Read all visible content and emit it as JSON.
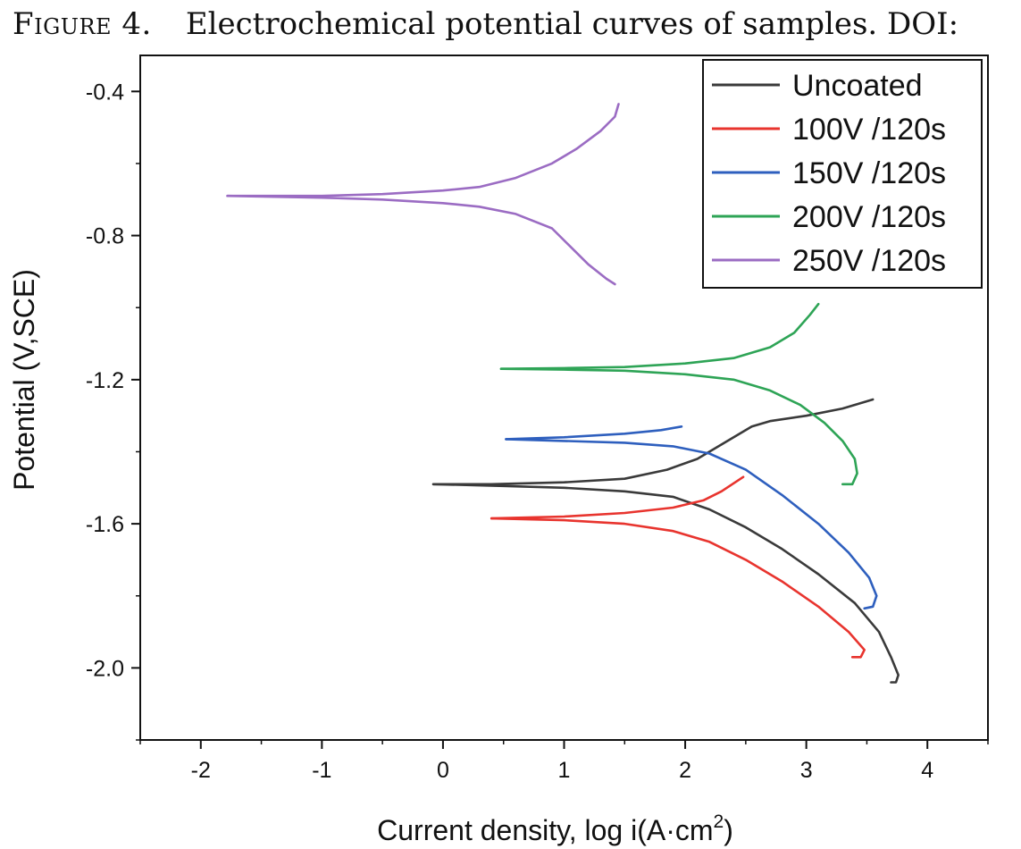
{
  "caption": {
    "label": "Figure 4.",
    "text": "Electrochemical potential curves of samples. DOI:"
  },
  "chart_data": {
    "type": "line",
    "title": "",
    "xlabel": "Current density, log i(A·cm",
    "xlabel_sup": "2",
    "xlabel_suffix": ")",
    "ylabel": "Potential (V,SCE)",
    "xlim": [
      -2.5,
      4.5
    ],
    "ylim": [
      -2.2,
      -0.3
    ],
    "x_ticks": [
      -2,
      -1,
      0,
      1,
      2,
      3,
      4
    ],
    "x_tick_labels": [
      "-2",
      "-1",
      "0",
      "1",
      "2",
      "3",
      "4"
    ],
    "y_ticks": [
      -0.4,
      -0.8,
      -1.2,
      -1.6,
      -2.0
    ],
    "y_tick_labels": [
      "-0.4",
      "-0.8",
      "-1.2",
      "-1.6",
      "-2.0"
    ],
    "grid": false,
    "legend_position": "top-right",
    "series": [
      {
        "name": "Uncoated",
        "color": "#3a3a3a",
        "anodic": [
          [
            -0.08,
            -1.49
          ],
          [
            0.4,
            -1.49
          ],
          [
            1.0,
            -1.485
          ],
          [
            1.5,
            -1.475
          ],
          [
            1.85,
            -1.45
          ],
          [
            2.1,
            -1.42
          ],
          [
            2.3,
            -1.38
          ],
          [
            2.45,
            -1.35
          ],
          [
            2.55,
            -1.33
          ],
          [
            2.7,
            -1.315
          ],
          [
            3.0,
            -1.3
          ],
          [
            3.3,
            -1.28
          ],
          [
            3.55,
            -1.255
          ]
        ],
        "cathodic": [
          [
            -0.08,
            -1.49
          ],
          [
            0.5,
            -1.495
          ],
          [
            1.0,
            -1.5
          ],
          [
            1.5,
            -1.51
          ],
          [
            1.9,
            -1.525
          ],
          [
            2.2,
            -1.56
          ],
          [
            2.5,
            -1.61
          ],
          [
            2.8,
            -1.67
          ],
          [
            3.1,
            -1.74
          ],
          [
            3.4,
            -1.82
          ],
          [
            3.6,
            -1.9
          ],
          [
            3.7,
            -1.97
          ],
          [
            3.76,
            -2.02
          ],
          [
            3.74,
            -2.04
          ],
          [
            3.7,
            -2.04
          ]
        ]
      },
      {
        "name": "100V /120s",
        "color": "#e8342e",
        "anodic": [
          [
            0.4,
            -1.585
          ],
          [
            1.0,
            -1.58
          ],
          [
            1.5,
            -1.57
          ],
          [
            1.9,
            -1.555
          ],
          [
            2.15,
            -1.535
          ],
          [
            2.3,
            -1.51
          ],
          [
            2.48,
            -1.47
          ]
        ],
        "cathodic": [
          [
            0.4,
            -1.585
          ],
          [
            1.0,
            -1.59
          ],
          [
            1.5,
            -1.6
          ],
          [
            1.9,
            -1.62
          ],
          [
            2.2,
            -1.65
          ],
          [
            2.5,
            -1.7
          ],
          [
            2.8,
            -1.76
          ],
          [
            3.1,
            -1.83
          ],
          [
            3.35,
            -1.9
          ],
          [
            3.48,
            -1.95
          ],
          [
            3.45,
            -1.97
          ],
          [
            3.38,
            -1.97
          ]
        ]
      },
      {
        "name": "150V /120s",
        "color": "#2e5fbe",
        "anodic": [
          [
            0.52,
            -1.365
          ],
          [
            1.0,
            -1.36
          ],
          [
            1.5,
            -1.35
          ],
          [
            1.8,
            -1.34
          ],
          [
            1.97,
            -1.33
          ]
        ],
        "cathodic": [
          [
            0.52,
            -1.365
          ],
          [
            1.0,
            -1.37
          ],
          [
            1.5,
            -1.375
          ],
          [
            1.9,
            -1.385
          ],
          [
            2.2,
            -1.405
          ],
          [
            2.5,
            -1.45
          ],
          [
            2.8,
            -1.52
          ],
          [
            3.1,
            -1.6
          ],
          [
            3.35,
            -1.68
          ],
          [
            3.52,
            -1.75
          ],
          [
            3.58,
            -1.8
          ],
          [
            3.55,
            -1.83
          ],
          [
            3.48,
            -1.835
          ]
        ]
      },
      {
        "name": "200V /120s",
        "color": "#2ea456",
        "anodic": [
          [
            0.48,
            -1.17
          ],
          [
            1.0,
            -1.168
          ],
          [
            1.5,
            -1.165
          ],
          [
            2.0,
            -1.155
          ],
          [
            2.4,
            -1.14
          ],
          [
            2.7,
            -1.11
          ],
          [
            2.9,
            -1.07
          ],
          [
            3.03,
            -1.02
          ],
          [
            3.1,
            -0.99
          ]
        ],
        "cathodic": [
          [
            0.48,
            -1.17
          ],
          [
            1.0,
            -1.172
          ],
          [
            1.5,
            -1.175
          ],
          [
            2.0,
            -1.185
          ],
          [
            2.4,
            -1.2
          ],
          [
            2.7,
            -1.23
          ],
          [
            2.95,
            -1.27
          ],
          [
            3.15,
            -1.32
          ],
          [
            3.3,
            -1.37
          ],
          [
            3.4,
            -1.42
          ],
          [
            3.42,
            -1.46
          ],
          [
            3.38,
            -1.49
          ],
          [
            3.3,
            -1.49
          ]
        ]
      },
      {
        "name": "250V /120s",
        "color": "#9b6cc3",
        "anodic": [
          [
            -1.78,
            -0.69
          ],
          [
            -1.0,
            -0.69
          ],
          [
            -0.5,
            -0.685
          ],
          [
            0.0,
            -0.675
          ],
          [
            0.3,
            -0.665
          ],
          [
            0.6,
            -0.64
          ],
          [
            0.9,
            -0.6
          ],
          [
            1.1,
            -0.56
          ],
          [
            1.3,
            -0.51
          ],
          [
            1.42,
            -0.47
          ],
          [
            1.45,
            -0.435
          ]
        ],
        "cathodic": [
          [
            -1.78,
            -0.69
          ],
          [
            -1.0,
            -0.695
          ],
          [
            -0.5,
            -0.7
          ],
          [
            0.0,
            -0.71
          ],
          [
            0.3,
            -0.72
          ],
          [
            0.6,
            -0.74
          ],
          [
            0.9,
            -0.78
          ],
          [
            1.05,
            -0.83
          ],
          [
            1.2,
            -0.88
          ],
          [
            1.35,
            -0.92
          ],
          [
            1.42,
            -0.935
          ]
        ]
      }
    ]
  }
}
